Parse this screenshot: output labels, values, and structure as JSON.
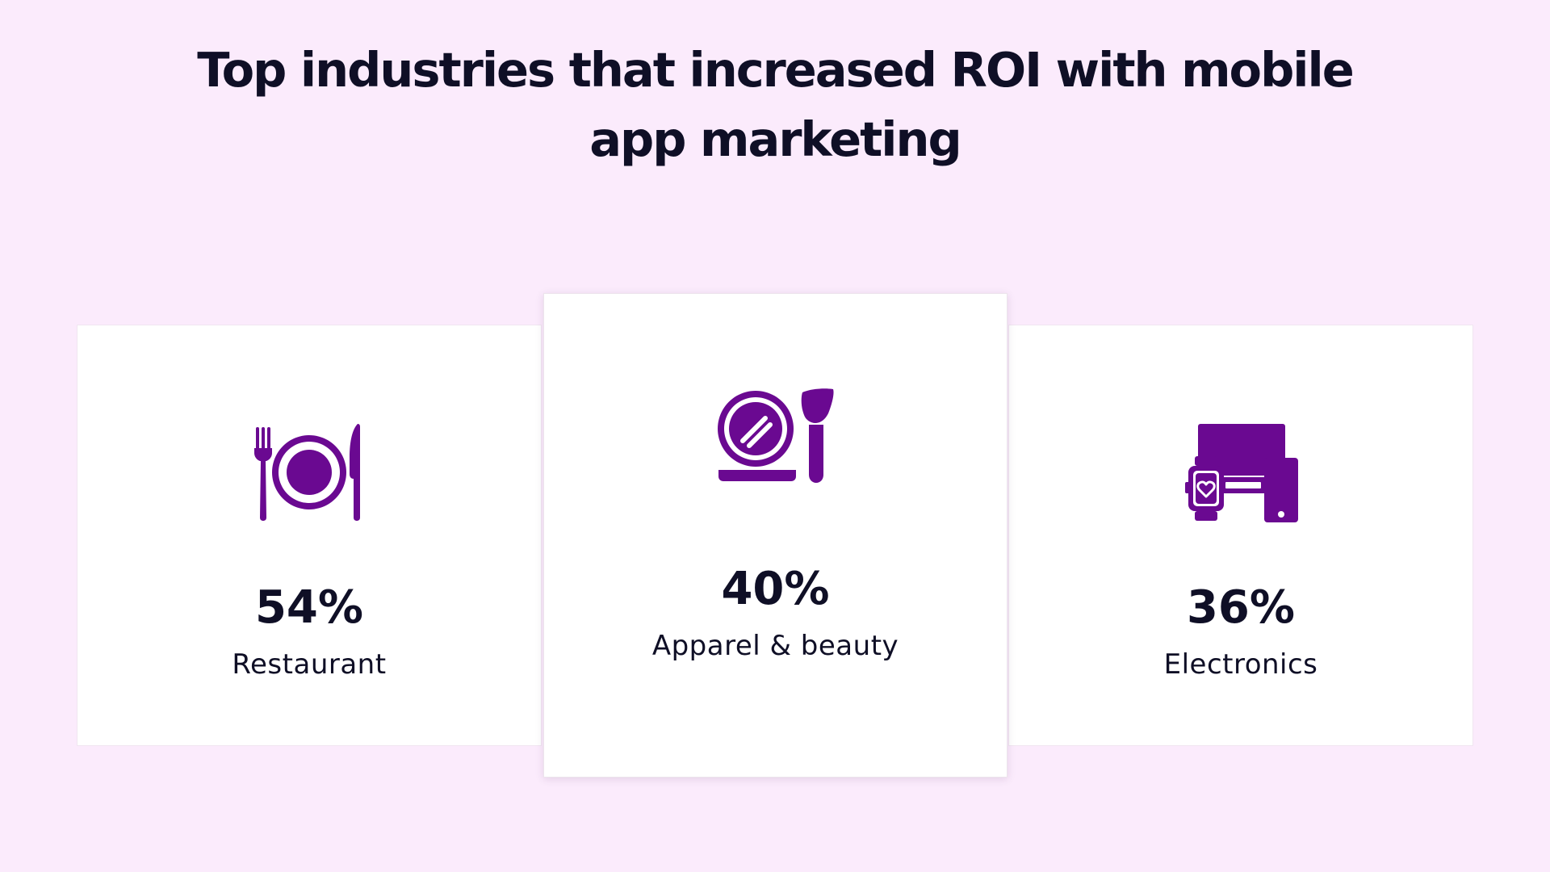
{
  "title": {
    "line1": "Top industries that increased ROI with mobile",
    "line2": "app marketing"
  },
  "colors": {
    "background": "#fbebfc",
    "accent": "#6a0991",
    "text": "#0f0f26",
    "card": "#ffffff"
  },
  "cards": [
    {
      "icon": "plate-cutlery-icon",
      "value": "54%",
      "label": "Restaurant"
    },
    {
      "icon": "makeup-compact-brush-icon",
      "value": "40%",
      "label": "Apparel & beauty"
    },
    {
      "icon": "devices-icon",
      "value": "36%",
      "label": "Electronics"
    }
  ]
}
